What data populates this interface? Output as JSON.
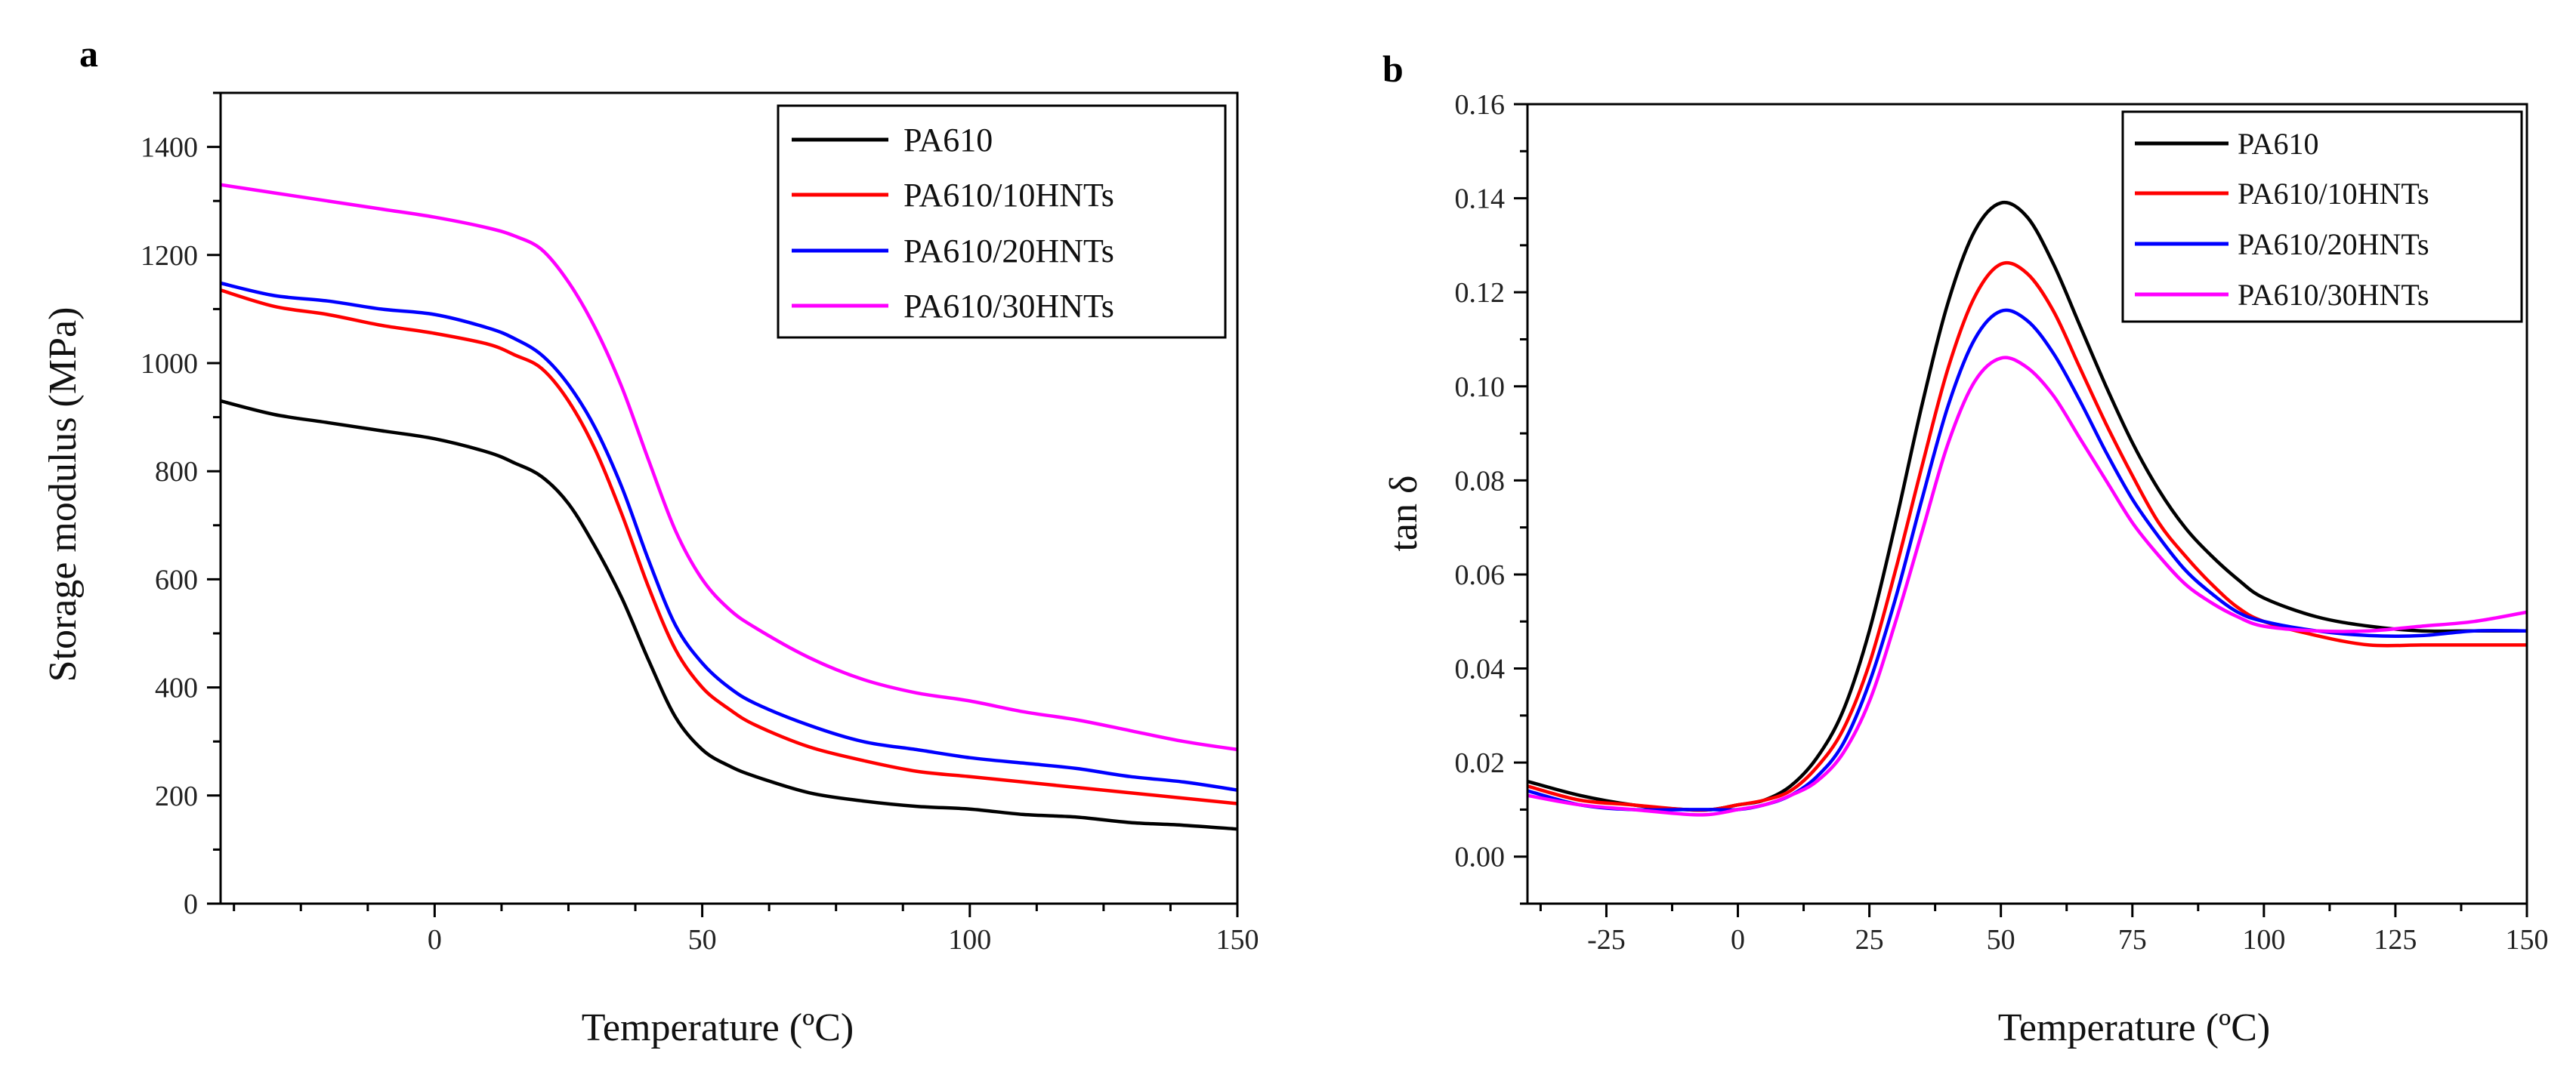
{
  "chart_data": [
    {
      "type": "line",
      "panel_label": "a",
      "title": "",
      "xlabel": "Temperature (ºC)",
      "ylabel": "Storage modulus (MPa)",
      "xlim": [
        -40,
        150
      ],
      "ylim": [
        0,
        1500
      ],
      "xticks": [
        0,
        50,
        100,
        150
      ],
      "yticks": [
        0,
        200,
        400,
        600,
        800,
        1000,
        1200,
        1400
      ],
      "grid": false,
      "legend_position": "top-right",
      "legend_box": true,
      "x": [
        -40,
        -30,
        -20,
        -10,
        0,
        10,
        15,
        20,
        25,
        30,
        35,
        40,
        45,
        50,
        55,
        60,
        70,
        80,
        90,
        100,
        110,
        120,
        130,
        140,
        150
      ],
      "series": [
        {
          "name": "PA610",
          "color": "#000000",
          "values": [
            930,
            905,
            890,
            875,
            860,
            835,
            815,
            790,
            740,
            660,
            565,
            450,
            345,
            285,
            255,
            235,
            205,
            190,
            180,
            175,
            165,
            160,
            150,
            145,
            138
          ]
        },
        {
          "name": "PA610/10HNTs",
          "color": "#ff0000",
          "values": [
            1135,
            1105,
            1090,
            1070,
            1055,
            1035,
            1015,
            990,
            930,
            840,
            720,
            585,
            470,
            400,
            360,
            330,
            290,
            265,
            245,
            235,
            225,
            215,
            205,
            195,
            185
          ]
        },
        {
          "name": "PA610/20HNTs",
          "color": "#0000ff",
          "values": [
            1148,
            1125,
            1115,
            1100,
            1090,
            1065,
            1045,
            1015,
            960,
            880,
            770,
            635,
            515,
            445,
            400,
            370,
            330,
            300,
            285,
            270,
            260,
            250,
            235,
            225,
            210
          ]
        },
        {
          "name": "PA610/30HNTs",
          "color": "#ff00ff",
          "values": [
            1330,
            1315,
            1300,
            1285,
            1270,
            1250,
            1235,
            1210,
            1150,
            1065,
            955,
            820,
            690,
            600,
            545,
            510,
            455,
            415,
            390,
            375,
            355,
            340,
            320,
            300,
            285
          ]
        }
      ]
    },
    {
      "type": "line",
      "panel_label": "b",
      "title": "",
      "xlabel": "Temperature (ºC)",
      "ylabel": "tan δ",
      "xlim": [
        -40,
        150
      ],
      "ylim": [
        -0.01,
        0.16
      ],
      "xticks": [
        -25,
        0,
        25,
        50,
        75,
        100,
        125,
        150
      ],
      "yticks": [
        0.0,
        0.02,
        0.04,
        0.06,
        0.08,
        0.1,
        0.12,
        0.14,
        0.16
      ],
      "ytick_labels": [
        "0.00",
        "0.02",
        "0.04",
        "0.06",
        "0.08",
        "0.10",
        "0.12",
        "0.14",
        "0.16"
      ],
      "grid": false,
      "legend_position": "top-right",
      "legend_box": true,
      "x": [
        -40,
        -30,
        -20,
        -10,
        -5,
        0,
        5,
        10,
        15,
        20,
        25,
        30,
        35,
        40,
        45,
        50,
        55,
        60,
        65,
        70,
        75,
        80,
        85,
        90,
        95,
        100,
        110,
        120,
        130,
        140,
        150
      ],
      "series": [
        {
          "name": "PA610",
          "color": "#000000",
          "values": [
            0.016,
            0.013,
            0.011,
            0.01,
            0.01,
            0.011,
            0.012,
            0.015,
            0.021,
            0.031,
            0.048,
            0.071,
            0.096,
            0.118,
            0.133,
            0.139,
            0.136,
            0.126,
            0.113,
            0.1,
            0.088,
            0.078,
            0.07,
            0.064,
            0.059,
            0.055,
            0.051,
            0.049,
            0.048,
            0.048,
            0.048
          ]
        },
        {
          "name": "PA610/10HNTs",
          "color": "#ff0000",
          "values": [
            0.015,
            0.012,
            0.011,
            0.01,
            0.01,
            0.011,
            0.012,
            0.014,
            0.019,
            0.027,
            0.041,
            0.061,
            0.083,
            0.104,
            0.119,
            0.126,
            0.124,
            0.116,
            0.104,
            0.092,
            0.081,
            0.071,
            0.064,
            0.058,
            0.053,
            0.05,
            0.047,
            0.045,
            0.045,
            0.045,
            0.045
          ]
        },
        {
          "name": "PA610/20HNTs",
          "color": "#0000ff",
          "values": [
            0.014,
            0.011,
            0.01,
            0.01,
            0.01,
            0.01,
            0.011,
            0.013,
            0.017,
            0.024,
            0.037,
            0.055,
            0.076,
            0.096,
            0.11,
            0.116,
            0.114,
            0.107,
            0.097,
            0.086,
            0.076,
            0.068,
            0.061,
            0.056,
            0.052,
            0.05,
            0.048,
            0.047,
            0.047,
            0.048,
            0.048
          ]
        },
        {
          "name": "PA610/30HNTs",
          "color": "#ff00ff",
          "values": [
            0.013,
            0.011,
            0.01,
            0.009,
            0.009,
            0.01,
            0.011,
            0.013,
            0.016,
            0.022,
            0.033,
            0.05,
            0.069,
            0.088,
            0.101,
            0.106,
            0.104,
            0.098,
            0.089,
            0.08,
            0.071,
            0.064,
            0.058,
            0.054,
            0.051,
            0.049,
            0.048,
            0.048,
            0.049,
            0.05,
            0.052
          ]
        }
      ]
    }
  ]
}
